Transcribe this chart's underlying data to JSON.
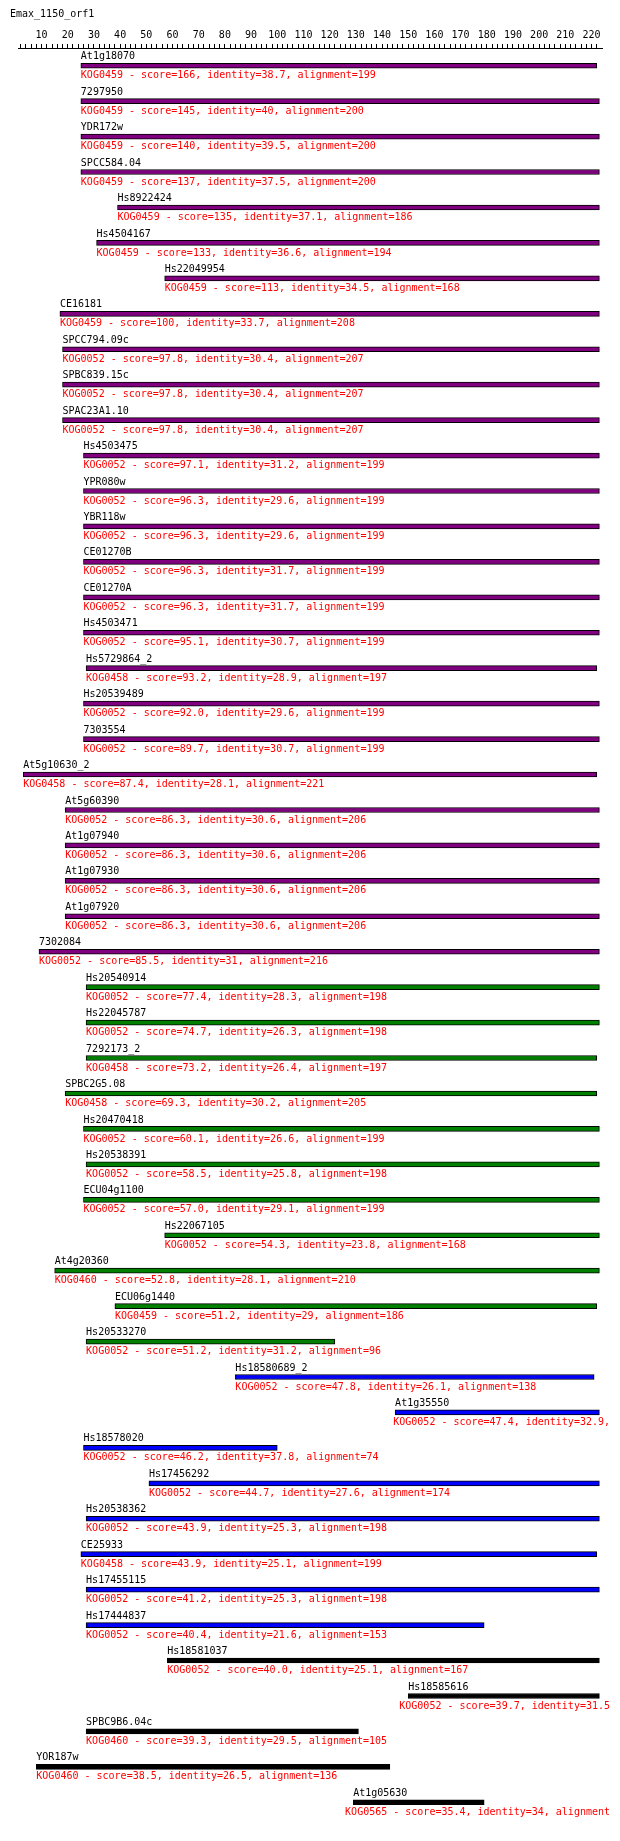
{
  "chart_data": {
    "type": "bar",
    "orientation": "horizontal",
    "title": "Emax_1150_orf1",
    "categories": [
      "At1g18070",
      "7297950",
      "YDR172w",
      "SPCC584.04",
      "Hs8922424",
      "Hs4504167",
      "Hs22049954",
      "CE16181",
      "SPCC794.09c",
      "SPBC839.15c",
      "SPAC23A1.10",
      "Hs4503475",
      "YPR080w",
      "YBR118w",
      "CE01270B",
      "CE01270A",
      "Hs4503471",
      "Hs5729864_2",
      "Hs20539489",
      "7303554",
      "At5g10630_2",
      "At5g60390",
      "At1g07940",
      "At1g07930",
      "At1g07920",
      "7302084",
      "Hs20540914",
      "Hs22045787",
      "7292173_2",
      "SPBC2G5.08",
      "Hs20470418",
      "Hs20538391",
      "ECU04g1100",
      "Hs22067105",
      "At4g20360",
      "ECU06g1440",
      "Hs20533270",
      "Hs18580689_2",
      "At1g35550",
      "Hs18578020",
      "Hs17456292",
      "Hs20538362",
      "CE25933",
      "Hs17455115",
      "Hs17444837",
      "Hs18581037",
      "Hs18585616",
      "SPBC9B6.04c",
      "YOR187w",
      "At1g05630"
    ],
    "base": [
      25,
      25,
      25,
      25,
      39,
      31,
      57,
      17,
      18,
      18,
      18,
      26,
      26,
      26,
      26,
      26,
      26,
      27,
      26,
      26,
      3,
      19,
      19,
      19,
      19,
      9,
      27,
      27,
      27,
      19,
      26,
      27,
      26,
      57,
      15,
      38,
      27,
      84,
      145,
      26,
      51,
      27,
      25,
      27,
      27,
      58,
      150,
      27,
      8,
      129
    ],
    "values": [
      197,
      198,
      198,
      198,
      184,
      192,
      166,
      206,
      205,
      205,
      205,
      197,
      197,
      197,
      197,
      197,
      197,
      195,
      197,
      197,
      219,
      204,
      204,
      204,
      204,
      214,
      196,
      196,
      195,
      203,
      197,
      196,
      197,
      166,
      208,
      184,
      95,
      137,
      78,
      74,
      172,
      196,
      197,
      196,
      152,
      165,
      73,
      104,
      135,
      50
    ],
    "colors": [
      "#800080",
      "#800080",
      "#800080",
      "#800080",
      "#800080",
      "#800080",
      "#800080",
      "#800080",
      "#800080",
      "#800080",
      "#800080",
      "#800080",
      "#800080",
      "#800080",
      "#800080",
      "#800080",
      "#800080",
      "#800080",
      "#800080",
      "#800080",
      "#800080",
      "#800080",
      "#800080",
      "#800080",
      "#800080",
      "#800080",
      "#008000",
      "#008000",
      "#008000",
      "#008000",
      "#008000",
      "#008000",
      "#008000",
      "#008000",
      "#008000",
      "#008000",
      "#008000",
      "#0000ff",
      "#0000ff",
      "#0000ff",
      "#0000ff",
      "#0000ff",
      "#0000ff",
      "#0000ff",
      "#0000ff",
      "#000000",
      "#000000",
      "#000000",
      "#000000",
      "#000000"
    ],
    "annotations": [
      "KOG0459 - score=166, identity=38.7, alignment=199",
      "KOG0459 - score=145, identity=40, alignment=200",
      "KOG0459 - score=140, identity=39.5, alignment=200",
      "KOG0459 - score=137, identity=37.5, alignment=200",
      "KOG0459 - score=135, identity=37.1, alignment=186",
      "KOG0459 - score=133, identity=36.6, alignment=194",
      "KOG0459 - score=113, identity=34.5, alignment=168",
      "KOG0459 - score=100, identity=33.7, alignment=208",
      "KOG0052 - score=97.8, identity=30.4, alignment=207",
      "KOG0052 - score=97.8, identity=30.4, alignment=207",
      "KOG0052 - score=97.8, identity=30.4, alignment=207",
      "KOG0052 - score=97.1, identity=31.2, alignment=199",
      "KOG0052 - score=96.3, identity=29.6, alignment=199",
      "KOG0052 - score=96.3, identity=29.6, alignment=199",
      "KOG0052 - score=96.3, identity=31.7, alignment=199",
      "KOG0052 - score=96.3, identity=31.7, alignment=199",
      "KOG0052 - score=95.1, identity=30.7, alignment=199",
      "KOG0458 - score=93.2, identity=28.9, alignment=197",
      "KOG0052 - score=92.0, identity=29.6, alignment=199",
      "KOG0052 - score=89.7, identity=30.7, alignment=199",
      "KOG0458 - score=87.4, identity=28.1, alignment=221",
      "KOG0052 - score=86.3, identity=30.6, alignment=206",
      "KOG0052 - score=86.3, identity=30.6, alignment=206",
      "KOG0052 - score=86.3, identity=30.6, alignment=206",
      "KOG0052 - score=86.3, identity=30.6, alignment=206",
      "KOG0052 - score=85.5, identity=31, alignment=216",
      "KOG0052 - score=77.4, identity=28.3, alignment=198",
      "KOG0052 - score=74.7, identity=26.3, alignment=198",
      "KOG0458 - score=73.2, identity=26.4, alignment=197",
      "KOG0458 - score=69.3, identity=30.2, alignment=205",
      "KOG0052 - score=60.1, identity=26.6, alignment=199",
      "KOG0052 - score=58.5, identity=25.8, alignment=198",
      "KOG0052 - score=57.0, identity=29.1, alignment=199",
      "KOG0052 - score=54.3, identity=23.8, alignment=168",
      "KOG0460 - score=52.8, identity=28.1, alignment=210",
      "KOG0459 - score=51.2, identity=29, alignment=186",
      "KOG0052 - score=51.2, identity=31.2, alignment=96",
      "KOG0052 - score=47.8, identity=26.1, alignment=138",
      "KOG0052 - score=47.4, identity=32.9,",
      "KOG0052 - score=46.2, identity=37.8, alignment=74",
      "KOG0052 - score=44.7, identity=27.6, alignment=174",
      "KOG0052 - score=43.9, identity=25.3, alignment=198",
      "KOG0458 - score=43.9, identity=25.1, alignment=199",
      "KOG0052 - score=41.2, identity=25.3, alignment=198",
      "KOG0052 - score=40.4, identity=21.6, alignment=153",
      "KOG0052 - score=40.0, identity=25.1, alignment=167",
      "KOG0052 - score=39.7, identity=31.5",
      "KOG0460 - score=39.3, identity=29.5, alignment=105",
      "KOG0460 - score=38.5, identity=26.5, alignment=136",
      "KOG0565 - score=35.4, identity=34, alignment"
    ],
    "xlim": [
      1,
      224
    ],
    "xticks": [
      {
        "value": 2,
        "label": null
      },
      {
        "value": 4,
        "label": null
      },
      {
        "value": 6,
        "label": null
      },
      {
        "value": 8,
        "label": null
      },
      10,
      {
        "value": 12,
        "label": null
      },
      {
        "value": 14,
        "label": null
      },
      {
        "value": 16,
        "label": null
      },
      {
        "value": 18,
        "label": null
      },
      20,
      {
        "value": 22,
        "label": null
      },
      {
        "value": 24,
        "label": null
      },
      {
        "value": 26,
        "label": null
      },
      {
        "value": 28,
        "label": null
      },
      30,
      {
        "value": 32,
        "label": null
      },
      {
        "value": 34,
        "label": null
      },
      {
        "value": 36,
        "label": null
      },
      {
        "value": 38,
        "label": null
      },
      40,
      {
        "value": 42,
        "label": null
      },
      {
        "value": 44,
        "label": null
      },
      {
        "value": 46,
        "label": null
      },
      {
        "value": 48,
        "label": null
      },
      50,
      {
        "value": 52,
        "label": null
      },
      {
        "value": 54,
        "label": null
      },
      {
        "value": 56,
        "label": null
      },
      {
        "value": 58,
        "label": null
      },
      60,
      {
        "value": 62,
        "label": null
      },
      {
        "value": 64,
        "label": null
      },
      {
        "value": 66,
        "label": null
      },
      {
        "value": 68,
        "label": null
      },
      70,
      {
        "value": 72,
        "label": null
      },
      {
        "value": 74,
        "label": null
      },
      {
        "value": 76,
        "label": null
      },
      {
        "value": 78,
        "label": null
      },
      80,
      {
        "value": 82,
        "label": null
      },
      {
        "value": 84,
        "label": null
      },
      {
        "value": 86,
        "label": null
      },
      {
        "value": 88,
        "label": null
      },
      90,
      {
        "value": 92,
        "label": null
      },
      {
        "value": 94,
        "label": null
      },
      {
        "value": 96,
        "label": null
      },
      {
        "value": 98,
        "label": null
      },
      100,
      {
        "value": 102,
        "label": null
      },
      {
        "value": 104,
        "label": null
      },
      {
        "value": 106,
        "label": null
      },
      {
        "value": 108,
        "label": null
      },
      110,
      {
        "value": 112,
        "label": null
      },
      {
        "value": 114,
        "label": null
      },
      {
        "value": 116,
        "label": null
      },
      {
        "value": 118,
        "label": null
      },
      120,
      {
        "value": 122,
        "label": null
      },
      {
        "value": 124,
        "label": null
      },
      {
        "value": 126,
        "label": null
      },
      {
        "value": 128,
        "label": null
      },
      130,
      {
        "value": 132,
        "label": null
      },
      {
        "value": 134,
        "label": null
      },
      {
        "value": 136,
        "label": null
      },
      {
        "value": 138,
        "label": null
      },
      140,
      {
        "value": 142,
        "label": null
      },
      {
        "value": 144,
        "label": null
      },
      {
        "value": 146,
        "label": null
      },
      {
        "value": 148,
        "label": null
      },
      150,
      {
        "value": 152,
        "label": null
      },
      {
        "value": 154,
        "label": null
      },
      {
        "value": 156,
        "label": null
      },
      {
        "value": 158,
        "label": null
      },
      160,
      {
        "value": 162,
        "label": null
      },
      {
        "value": 164,
        "label": null
      },
      {
        "value": 166,
        "label": null
      },
      {
        "value": 168,
        "label": null
      },
      170,
      {
        "value": 172,
        "label": null
      },
      {
        "value": 174,
        "label": null
      },
      {
        "value": 176,
        "label": null
      },
      {
        "value": 178,
        "label": null
      },
      180,
      {
        "value": 182,
        "label": null
      },
      {
        "value": 184,
        "label": null
      },
      {
        "value": 186,
        "label": null
      },
      {
        "value": 188,
        "label": null
      },
      190,
      {
        "value": 192,
        "label": null
      },
      {
        "value": 194,
        "label": null
      },
      {
        "value": 196,
        "label": null
      },
      {
        "value": 198,
        "label": null
      },
      200,
      {
        "value": 202,
        "label": null
      },
      {
        "value": 204,
        "label": null
      },
      {
        "value": 206,
        "label": null
      },
      {
        "value": 208,
        "label": null
      },
      210,
      {
        "value": 212,
        "label": null
      },
      {
        "value": 214,
        "label": null
      },
      {
        "value": 216,
        "label": null
      },
      {
        "value": 218,
        "label": null
      },
      220,
      {
        "value": 222,
        "label": null
      }
    ],
    "tick_labels": "x",
    "grid": false,
    "legend": false
  }
}
